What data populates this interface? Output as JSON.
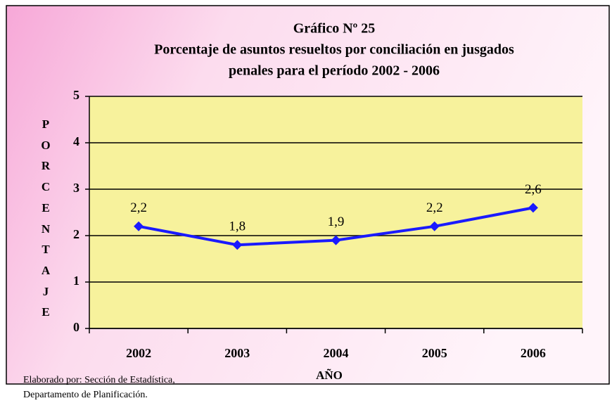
{
  "chart_data": {
    "type": "line",
    "title": "Gráfico Nº 25",
    "subtitle": [
      "Porcentaje de asuntos resueltos por conciliación  en jusgados",
      "penales para el período  2002 - 2006"
    ],
    "x_label": "AÑO",
    "y_label": "PORCENTAJE",
    "note": [
      "Elaborado por: Sección de Estadística,",
      "Departamento de Planificación."
    ],
    "categories": [
      "2002",
      "2003",
      "2004",
      "2005",
      "2006"
    ],
    "series": [
      {
        "name": "Porcentaje",
        "color": "#1a1aff",
        "values": [
          2.2,
          1.8,
          1.9,
          2.2,
          2.6
        ],
        "value_labels": [
          "2,2",
          "1,8",
          "1,9",
          "2,2",
          "2,6"
        ]
      }
    ],
    "ylim": [
      0,
      5
    ],
    "yticks": [
      0,
      1,
      2,
      3,
      4,
      5
    ],
    "grid": true,
    "plot_color": "#f7f29c"
  }
}
